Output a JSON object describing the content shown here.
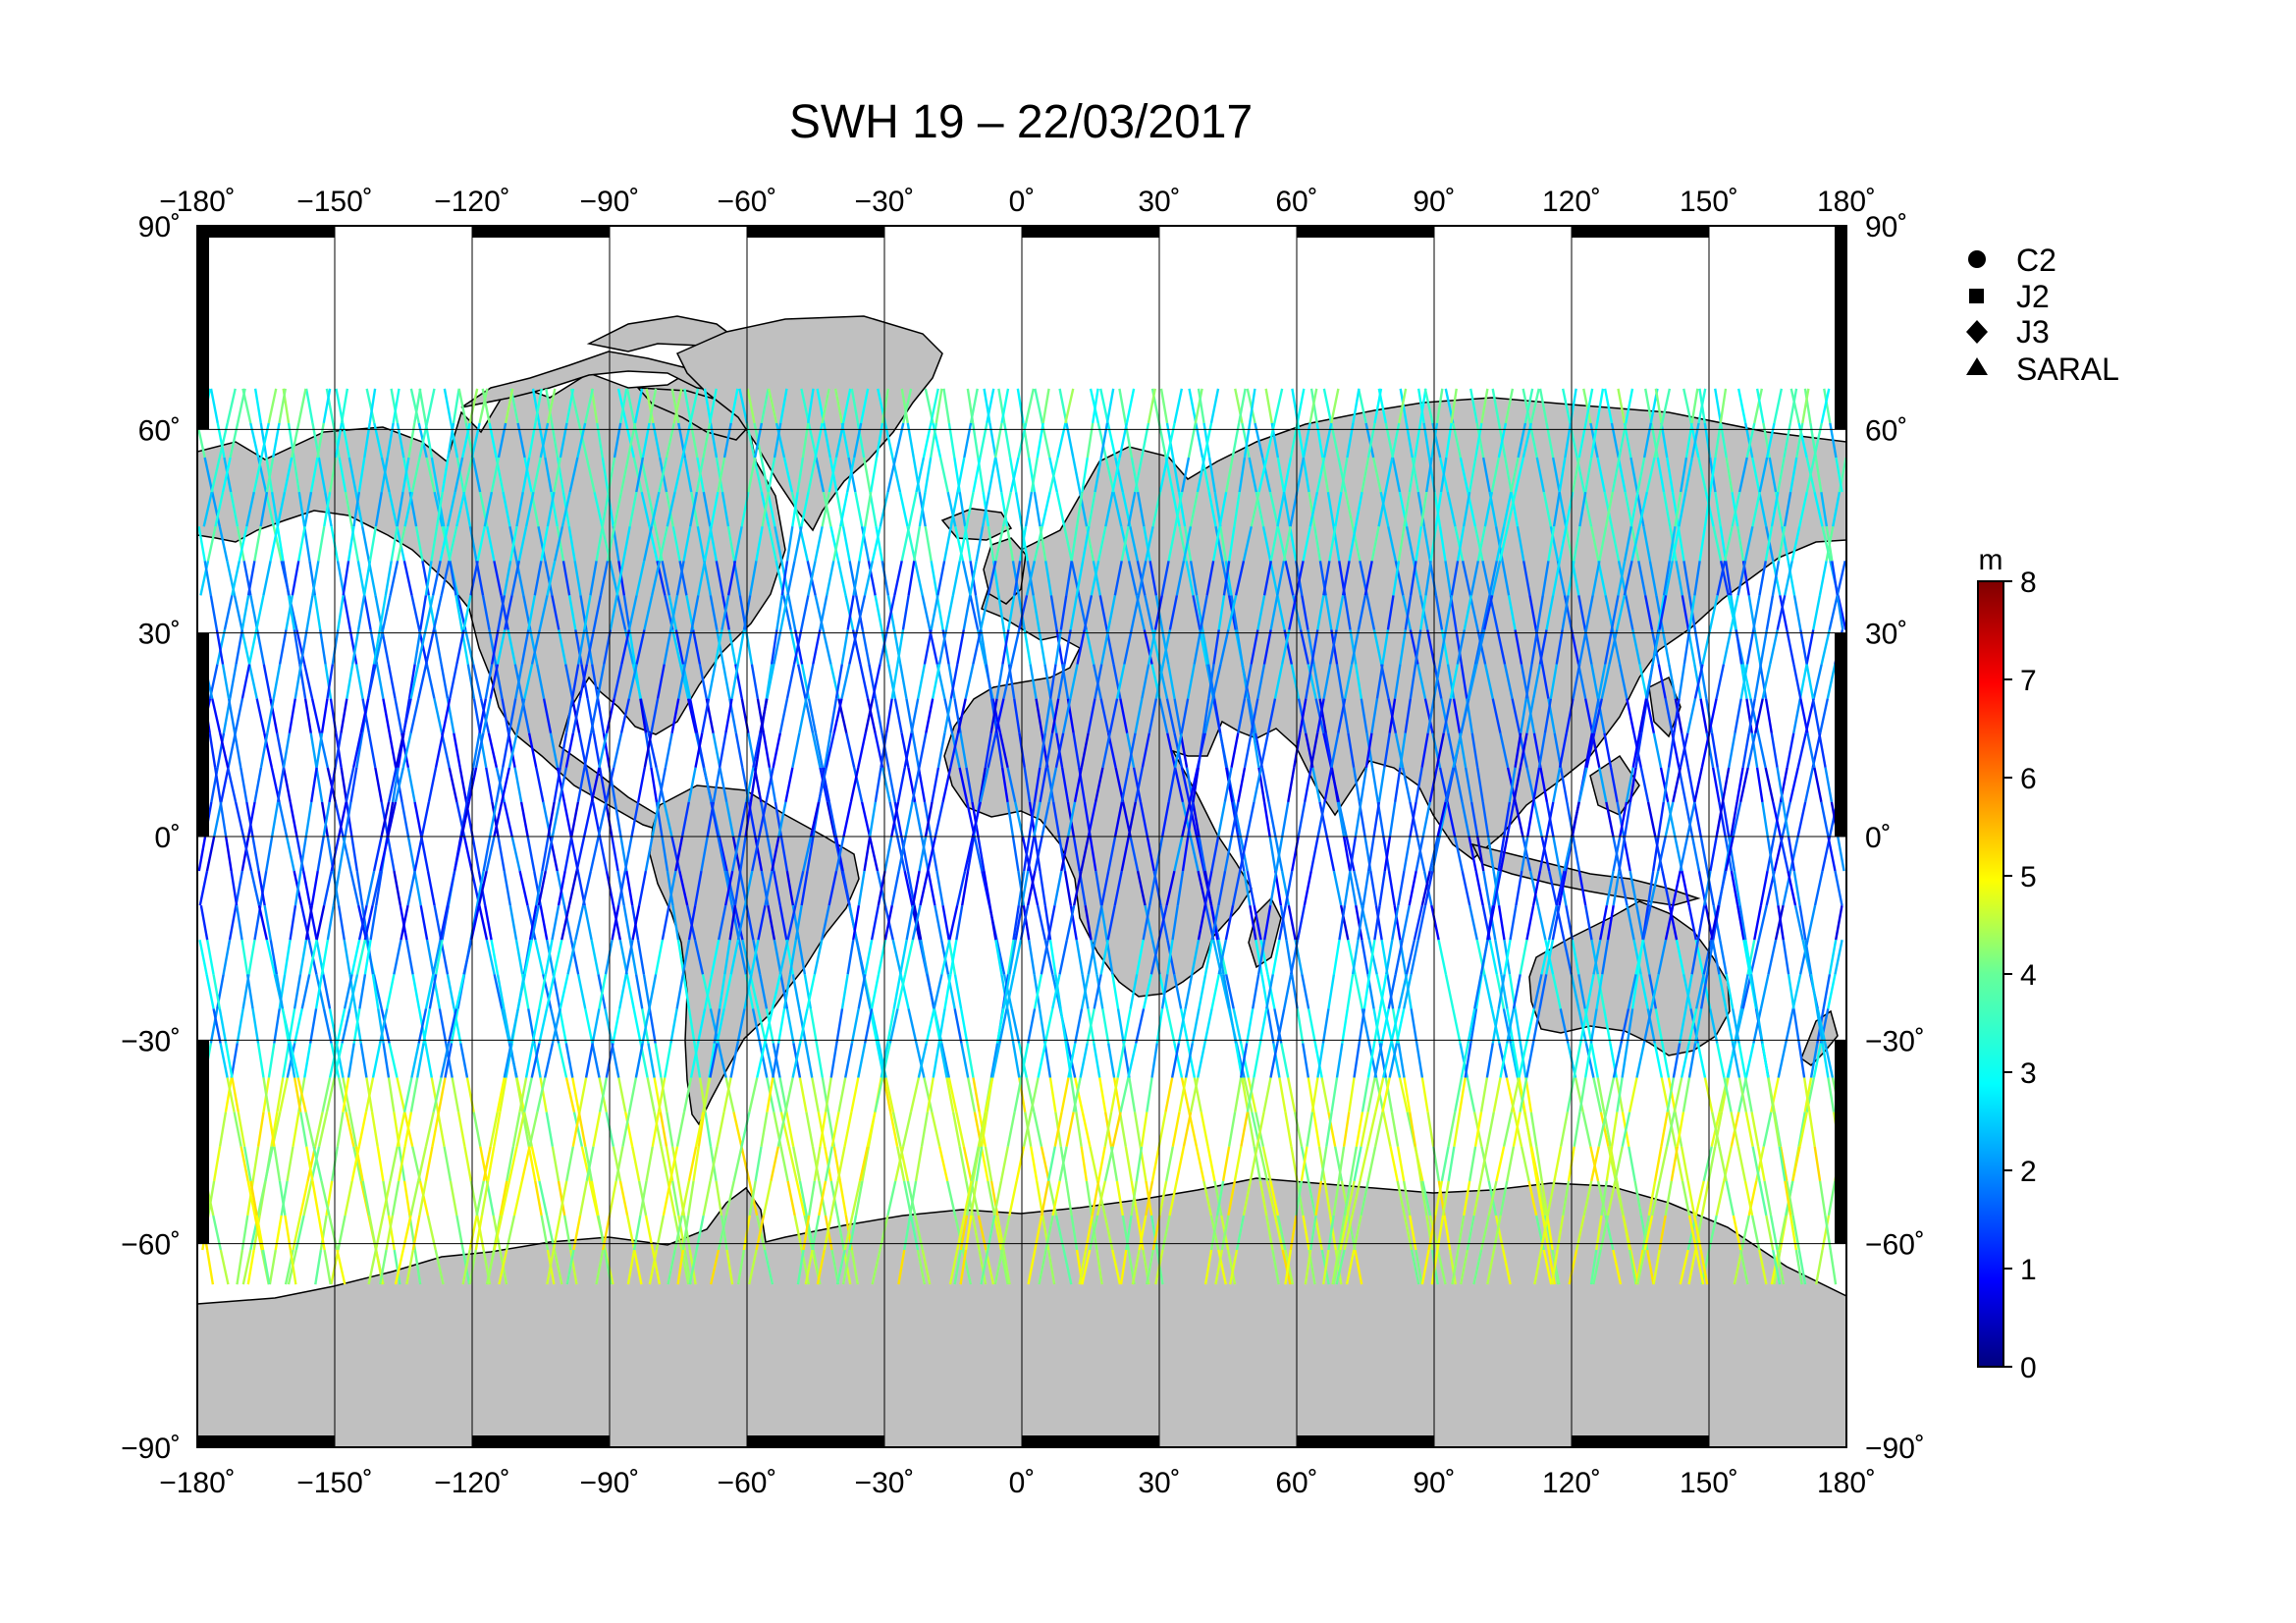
{
  "title": "SWH 19 – 22/03/2017",
  "map": {
    "projection": "equirectangular",
    "lon_range": [
      -180,
      180
    ],
    "lat_range": [
      -90,
      90
    ],
    "grid_step_lon": 30,
    "grid_step_lat": 30,
    "grid": true,
    "land_color": "#c0c0c0",
    "ocean_color": "#ffffff",
    "lon_ticks": [
      "−180˚",
      "−150˚",
      "−120˚",
      "−90˚",
      "−60˚",
      "−30˚",
      "0˚",
      "30˚",
      "60˚",
      "90˚",
      "120˚",
      "150˚",
      "180˚"
    ],
    "lat_ticks": [
      "90˚",
      "60˚",
      "30˚",
      "0˚",
      "−30˚",
      "−60˚",
      "−90˚"
    ]
  },
  "legend": {
    "placement": "right",
    "items": [
      {
        "label": "C2",
        "marker": "circle"
      },
      {
        "label": "J2",
        "marker": "square"
      },
      {
        "label": "J3",
        "marker": "diamond"
      },
      {
        "label": "SARAL",
        "marker": "triangle"
      }
    ]
  },
  "colorbar": {
    "unit": "m",
    "min": 0,
    "max": 8,
    "tick_labels": [
      "0",
      "1",
      "2",
      "3",
      "4",
      "5",
      "6",
      "7",
      "8"
    ],
    "colormap": "jet"
  },
  "chart_data": {
    "type": "scatter",
    "title": "SWH 19 – 22/03/2017",
    "xlim": [
      -180,
      180
    ],
    "ylim": [
      -90,
      90
    ],
    "value_unit": "m",
    "value_range": [
      0,
      8
    ],
    "swh_by_latitude_band": [
      {
        "lat": [
          60,
          66
        ],
        "swh": 3.5
      },
      {
        "lat": [
          40,
          60
        ],
        "swh": 3.0
      },
      {
        "lat": [
          20,
          40
        ],
        "swh": 2.0
      },
      {
        "lat": [
          -20,
          20
        ],
        "swh": 1.5
      },
      {
        "lat": [
          -40,
          -20
        ],
        "swh": 2.5
      },
      {
        "lat": [
          -66,
          -40
        ],
        "swh": 4.5
      }
    ],
    "track_latitude_limit": [
      -66,
      66
    ],
    "track_count": 160
  }
}
